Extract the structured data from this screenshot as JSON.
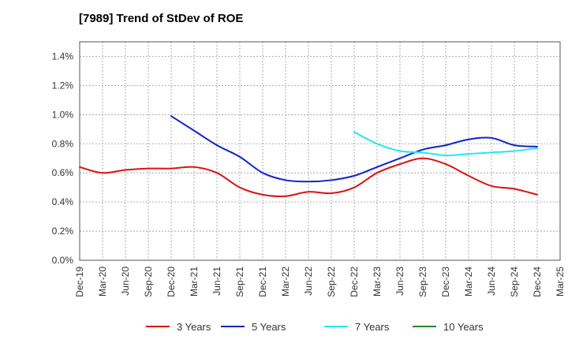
{
  "chart_data": {
    "type": "line",
    "title": "[7989]  Trend of StDev of ROE",
    "xlabel": "",
    "ylabel": "",
    "x": [
      "Dec-19",
      "Mar-20",
      "Jun-20",
      "Sep-20",
      "Dec-20",
      "Mar-21",
      "Jun-21",
      "Sep-21",
      "Dec-21",
      "Mar-22",
      "Jun-22",
      "Sep-22",
      "Dec-22",
      "Mar-23",
      "Jun-23",
      "Sep-23",
      "Dec-23",
      "Mar-24",
      "Jun-24",
      "Sep-24",
      "Dec-24",
      "Mar-25"
    ],
    "ylim": [
      0,
      1.5
    ],
    "yticks": [
      0,
      0.2,
      0.4,
      0.6,
      0.8,
      1.0,
      1.2,
      1.4
    ],
    "ytick_labels": [
      "0.0%",
      "0.2%",
      "0.4%",
      "0.6%",
      "0.8%",
      "1.0%",
      "1.2%",
      "1.4%"
    ],
    "grid": true,
    "legend_position": "bottom",
    "series": [
      {
        "name": "3 Years",
        "color": "#dd1111",
        "values": [
          0.64,
          0.6,
          0.62,
          0.63,
          0.63,
          0.64,
          0.6,
          0.5,
          0.45,
          0.44,
          0.47,
          0.46,
          0.5,
          0.6,
          0.66,
          0.7,
          0.66,
          0.58,
          0.51,
          0.49,
          0.45,
          null
        ]
      },
      {
        "name": "5 Years",
        "color": "#1122cc",
        "values": [
          null,
          null,
          null,
          null,
          0.99,
          0.89,
          0.79,
          0.71,
          0.6,
          0.55,
          0.54,
          0.55,
          0.58,
          0.64,
          0.7,
          0.76,
          0.79,
          0.83,
          0.84,
          0.79,
          0.78,
          null
        ]
      },
      {
        "name": "7 Years",
        "color": "#22e8ee",
        "values": [
          null,
          null,
          null,
          null,
          null,
          null,
          null,
          null,
          null,
          null,
          null,
          null,
          0.88,
          0.8,
          0.75,
          0.74,
          0.72,
          0.73,
          0.74,
          0.75,
          0.77,
          null
        ]
      },
      {
        "name": "10 Years",
        "color": "#228822",
        "values": [
          null,
          null,
          null,
          null,
          null,
          null,
          null,
          null,
          null,
          null,
          null,
          null,
          null,
          null,
          null,
          null,
          null,
          null,
          null,
          null,
          null,
          null
        ]
      }
    ]
  }
}
